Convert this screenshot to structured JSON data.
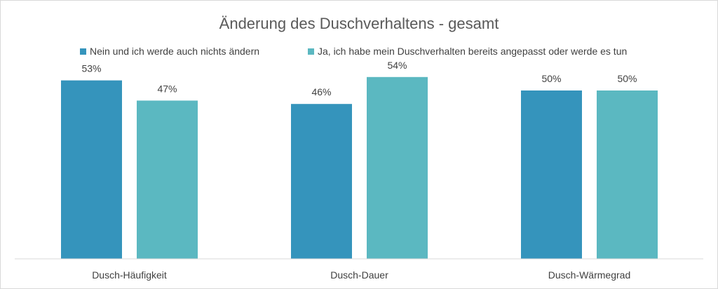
{
  "chart_data": {
    "type": "bar",
    "title": "Änderung des Duschverhaltens - gesamt",
    "categories": [
      "Dusch-Häufigkeit",
      "Dusch-Dauer",
      "Dusch-Wärmegrad"
    ],
    "series": [
      {
        "name": "Nein und ich werde auch nichts ändern",
        "color": "#3594BC",
        "values": [
          53,
          46,
          50
        ],
        "labels": [
          "53%",
          "46%",
          "50%"
        ]
      },
      {
        "name": "Ja, ich habe mein Duschverhalten bereits angepasst oder werde es tun",
        "color": "#5BB8C1",
        "values": [
          47,
          54,
          50
        ],
        "labels": [
          "47%",
          "54%",
          "50%"
        ]
      }
    ],
    "ylim": [
      0,
      60
    ],
    "grid": false,
    "legend_position": "top"
  }
}
